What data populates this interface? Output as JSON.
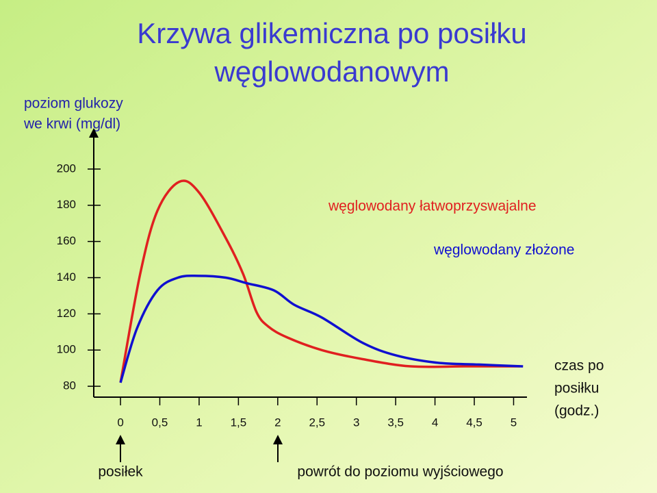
{
  "chart_data": {
    "type": "line",
    "title": [
      "Krzywa glikemiczna po posiłku",
      "węglowodanowym"
    ],
    "y_label": [
      "poziom glukozy",
      "we krwi (mg/dl)"
    ],
    "x_label": [
      "czas po",
      "posiłku",
      "(godz.)"
    ],
    "annotations": [
      "posiłek",
      "powrót do poziomu wyjściowego"
    ],
    "xlim": [
      -0.34,
      5.17
    ],
    "ylim": [
      74,
      220
    ],
    "xticks": [
      0,
      {
        "value": 0.5,
        "label": "0,5"
      },
      1,
      {
        "value": 1.5,
        "label": "1,5"
      },
      2,
      {
        "value": 2.5,
        "label": "2,5"
      },
      3,
      {
        "value": 3.5,
        "label": "3,5"
      },
      4,
      {
        "value": 4.5,
        "label": "4,5"
      },
      5
    ],
    "yticks": [
      80,
      100,
      120,
      140,
      160,
      180,
      200
    ],
    "series": [
      {
        "name": "węglowodany łatwoprzyswajalne",
        "color": "#e02020",
        "x": [
          0,
          0.25,
          0.47,
          0.75,
          1.0,
          1.35,
          1.56,
          1.73,
          1.88,
          2.12,
          2.56,
          3.08,
          3.69,
          4.38,
          5.08
        ],
        "values": [
          82,
          142,
          177,
          193,
          187,
          161,
          142,
          121,
          113,
          107,
          100,
          95,
          91,
          91,
          91
        ]
      },
      {
        "name": "węglowodany złożone",
        "color": "#1010d0",
        "x": [
          0,
          0.21,
          0.47,
          0.73,
          0.99,
          1.34,
          1.6,
          1.95,
          2.21,
          2.56,
          3.08,
          3.51,
          4.03,
          4.56,
          5.12
        ],
        "values": [
          82,
          112,
          133,
          140,
          141,
          140,
          137,
          133,
          125,
          118,
          104,
          97,
          93,
          92,
          91
        ]
      }
    ]
  }
}
